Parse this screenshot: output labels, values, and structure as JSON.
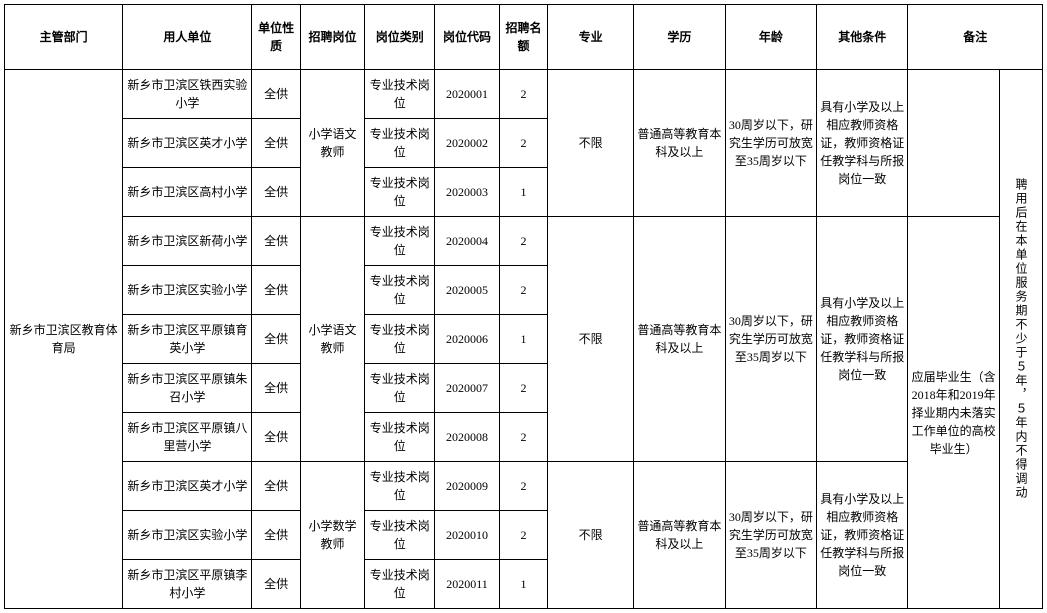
{
  "headers": {
    "dept": "主管部门",
    "unit": "用人单位",
    "nature": "单位性质",
    "post": "招聘岗位",
    "category": "岗位类别",
    "code": "岗位代码",
    "quota": "招聘名额",
    "major": "专业",
    "edu": "学历",
    "age": "年龄",
    "other": "其他条件",
    "note": "备注"
  },
  "dept": "新乡市卫滨区教育体育局",
  "groups": [
    {
      "post": "小学语文教师",
      "major": "不限",
      "edu": "普通高等教育本科及以上",
      "age": "30周岁以下，研究生学历可放宽至35周岁以下",
      "other": "具有小学及以上相应教师资格证，教师资格证任教学科与所报岗位一致",
      "rows": [
        {
          "unit": "新乡市卫滨区铁西实验小学",
          "nature": "全供",
          "category": "专业技术岗位",
          "code": "2020001",
          "quota": "2"
        },
        {
          "unit": "新乡市卫滨区英才小学",
          "nature": "全供",
          "category": "专业技术岗位",
          "code": "2020002",
          "quota": "2"
        },
        {
          "unit": "新乡市卫滨区高村小学",
          "nature": "全供",
          "category": "专业技术岗位",
          "code": "2020003",
          "quota": "1"
        }
      ]
    },
    {
      "post": "小学语文教师",
      "major": "不限",
      "edu": "普通高等教育本科及以上",
      "age": "30周岁以下，研究生学历可放宽至35周岁以下",
      "other": "具有小学及以上相应教师资格证，教师资格证任教学科与所报岗位一致",
      "note1": "应届毕业生（含2018年和2019年择业期内未落实工作单位的高校毕业生）",
      "rows": [
        {
          "unit": "新乡市卫滨区新荷小学",
          "nature": "全供",
          "category": "专业技术岗位",
          "code": "2020004",
          "quota": "2"
        },
        {
          "unit": "新乡市卫滨区实验小学",
          "nature": "全供",
          "category": "专业技术岗位",
          "code": "2020005",
          "quota": "2"
        },
        {
          "unit": "新乡市卫滨区平原镇育英小学",
          "nature": "全供",
          "category": "专业技术岗位",
          "code": "2020006",
          "quota": "1"
        },
        {
          "unit": "新乡市卫滨区平原镇朱召小学",
          "nature": "全供",
          "category": "专业技术岗位",
          "code": "2020007",
          "quota": "2"
        },
        {
          "unit": "新乡市卫滨区平原镇八里营小学",
          "nature": "全供",
          "category": "专业技术岗位",
          "code": "2020008",
          "quota": "2"
        }
      ]
    },
    {
      "post": "小学数学教师",
      "major": "不限",
      "edu": "普通高等教育本科及以上",
      "age": "30周岁以下，研究生学历可放宽至35周岁以下",
      "other": "具有小学及以上相应教师资格证，教师资格证任教学科与所报岗位一致",
      "rows": [
        {
          "unit": "新乡市卫滨区英才小学",
          "nature": "全供",
          "category": "专业技术岗位",
          "code": "2020009",
          "quota": "2"
        },
        {
          "unit": "新乡市卫滨区实验小学",
          "nature": "全供",
          "category": "专业技术岗位",
          "code": "2020010",
          "quota": "2"
        },
        {
          "unit": "新乡市卫滨区平原镇李村小学",
          "nature": "全供",
          "category": "专业技术岗位",
          "code": "2020011",
          "quota": "1"
        }
      ]
    }
  ],
  "note2": "聘用后在本单位服务期不少于５年，５年内不得调动",
  "style": {
    "font_family": "SimSun",
    "header_font_family": "SimHei",
    "font_size_pt": 12,
    "border_color": "#000000",
    "background": "#ffffff",
    "text_color": "#000000"
  }
}
